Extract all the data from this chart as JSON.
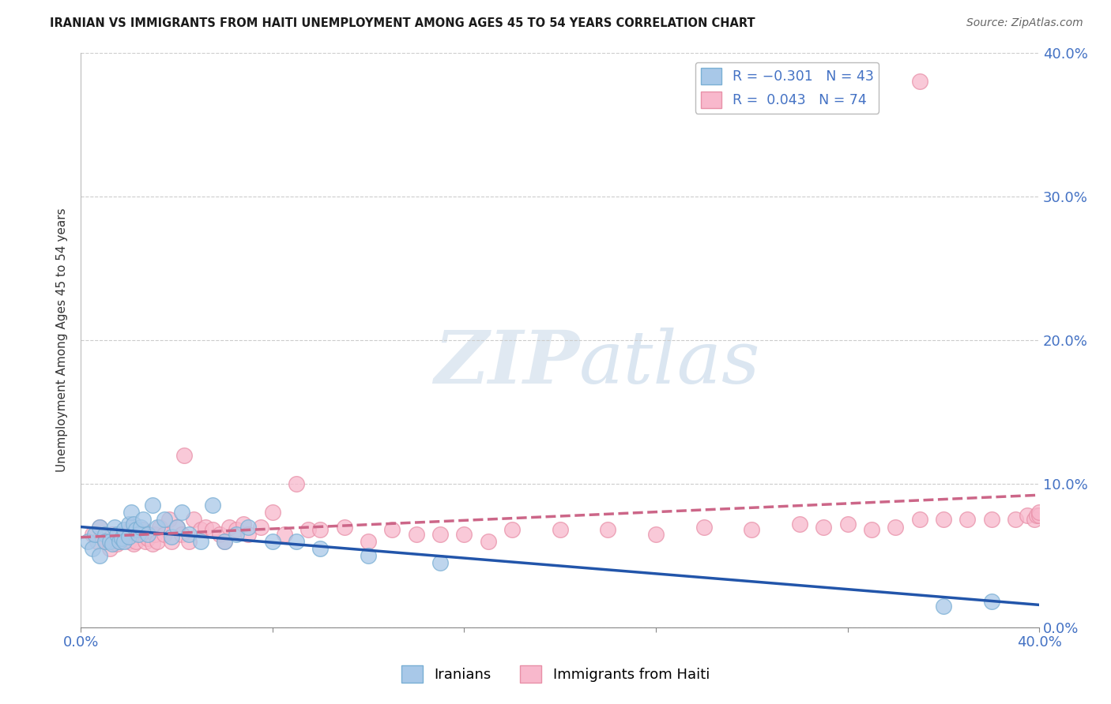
{
  "title": "IRANIAN VS IMMIGRANTS FROM HAITI UNEMPLOYMENT AMONG AGES 45 TO 54 YEARS CORRELATION CHART",
  "source": "Source: ZipAtlas.com",
  "ylabel": "Unemployment Among Ages 45 to 54 years",
  "xlim": [
    0.0,
    0.4
  ],
  "ylim": [
    0.0,
    0.4
  ],
  "blue_color": "#a8c8e8",
  "blue_edge": "#7aafd4",
  "pink_color": "#f8b8cc",
  "pink_edge": "#e890a8",
  "trendline_blue": "#2255aa",
  "trendline_pink": "#cc6688",
  "iranians_x": [
    0.003,
    0.005,
    0.006,
    0.008,
    0.008,
    0.01,
    0.01,
    0.012,
    0.013,
    0.014,
    0.015,
    0.016,
    0.017,
    0.018,
    0.018,
    0.02,
    0.02,
    0.021,
    0.022,
    0.023,
    0.024,
    0.025,
    0.026,
    0.028,
    0.03,
    0.032,
    0.035,
    0.038,
    0.04,
    0.042,
    0.045,
    0.05,
    0.055,
    0.06,
    0.065,
    0.07,
    0.08,
    0.09,
    0.1,
    0.12,
    0.15,
    0.36,
    0.38
  ],
  "iranians_y": [
    0.06,
    0.055,
    0.065,
    0.07,
    0.05,
    0.065,
    0.06,
    0.06,
    0.058,
    0.07,
    0.065,
    0.06,
    0.062,
    0.068,
    0.06,
    0.072,
    0.063,
    0.08,
    0.072,
    0.068,
    0.065,
    0.07,
    0.075,
    0.065,
    0.085,
    0.07,
    0.075,
    0.063,
    0.07,
    0.08,
    0.065,
    0.06,
    0.085,
    0.06,
    0.065,
    0.07,
    0.06,
    0.06,
    0.055,
    0.05,
    0.045,
    0.015,
    0.018
  ],
  "haiti_x": [
    0.005,
    0.007,
    0.008,
    0.01,
    0.012,
    0.013,
    0.015,
    0.016,
    0.017,
    0.018,
    0.02,
    0.021,
    0.022,
    0.023,
    0.025,
    0.026,
    0.027,
    0.028,
    0.03,
    0.031,
    0.032,
    0.033,
    0.035,
    0.037,
    0.038,
    0.04,
    0.042,
    0.043,
    0.045,
    0.047,
    0.05,
    0.052,
    0.055,
    0.058,
    0.06,
    0.062,
    0.065,
    0.068,
    0.07,
    0.075,
    0.08,
    0.085,
    0.09,
    0.095,
    0.1,
    0.11,
    0.12,
    0.13,
    0.14,
    0.15,
    0.16,
    0.17,
    0.18,
    0.2,
    0.22,
    0.24,
    0.26,
    0.28,
    0.3,
    0.31,
    0.32,
    0.33,
    0.34,
    0.35,
    0.36,
    0.37,
    0.38,
    0.39,
    0.395,
    0.398,
    0.399,
    0.4,
    0.4,
    0.35
  ],
  "haiti_y": [
    0.065,
    0.06,
    0.07,
    0.06,
    0.055,
    0.065,
    0.058,
    0.06,
    0.062,
    0.065,
    0.06,
    0.07,
    0.058,
    0.06,
    0.065,
    0.068,
    0.06,
    0.062,
    0.058,
    0.065,
    0.06,
    0.07,
    0.065,
    0.075,
    0.06,
    0.07,
    0.065,
    0.12,
    0.06,
    0.075,
    0.068,
    0.07,
    0.068,
    0.065,
    0.06,
    0.07,
    0.068,
    0.072,
    0.065,
    0.07,
    0.08,
    0.065,
    0.1,
    0.068,
    0.068,
    0.07,
    0.06,
    0.068,
    0.065,
    0.065,
    0.065,
    0.06,
    0.068,
    0.068,
    0.068,
    0.065,
    0.07,
    0.068,
    0.072,
    0.07,
    0.072,
    0.068,
    0.07,
    0.075,
    0.075,
    0.075,
    0.075,
    0.075,
    0.078,
    0.075,
    0.078,
    0.078,
    0.08,
    0.38
  ],
  "watermark_zip": "ZIP",
  "watermark_atlas": "atlas",
  "background_color": "#ffffff",
  "grid_color": "#cccccc",
  "right_axis_color": "#4472c4",
  "title_color": "#1a1a1a",
  "source_color": "#666666"
}
